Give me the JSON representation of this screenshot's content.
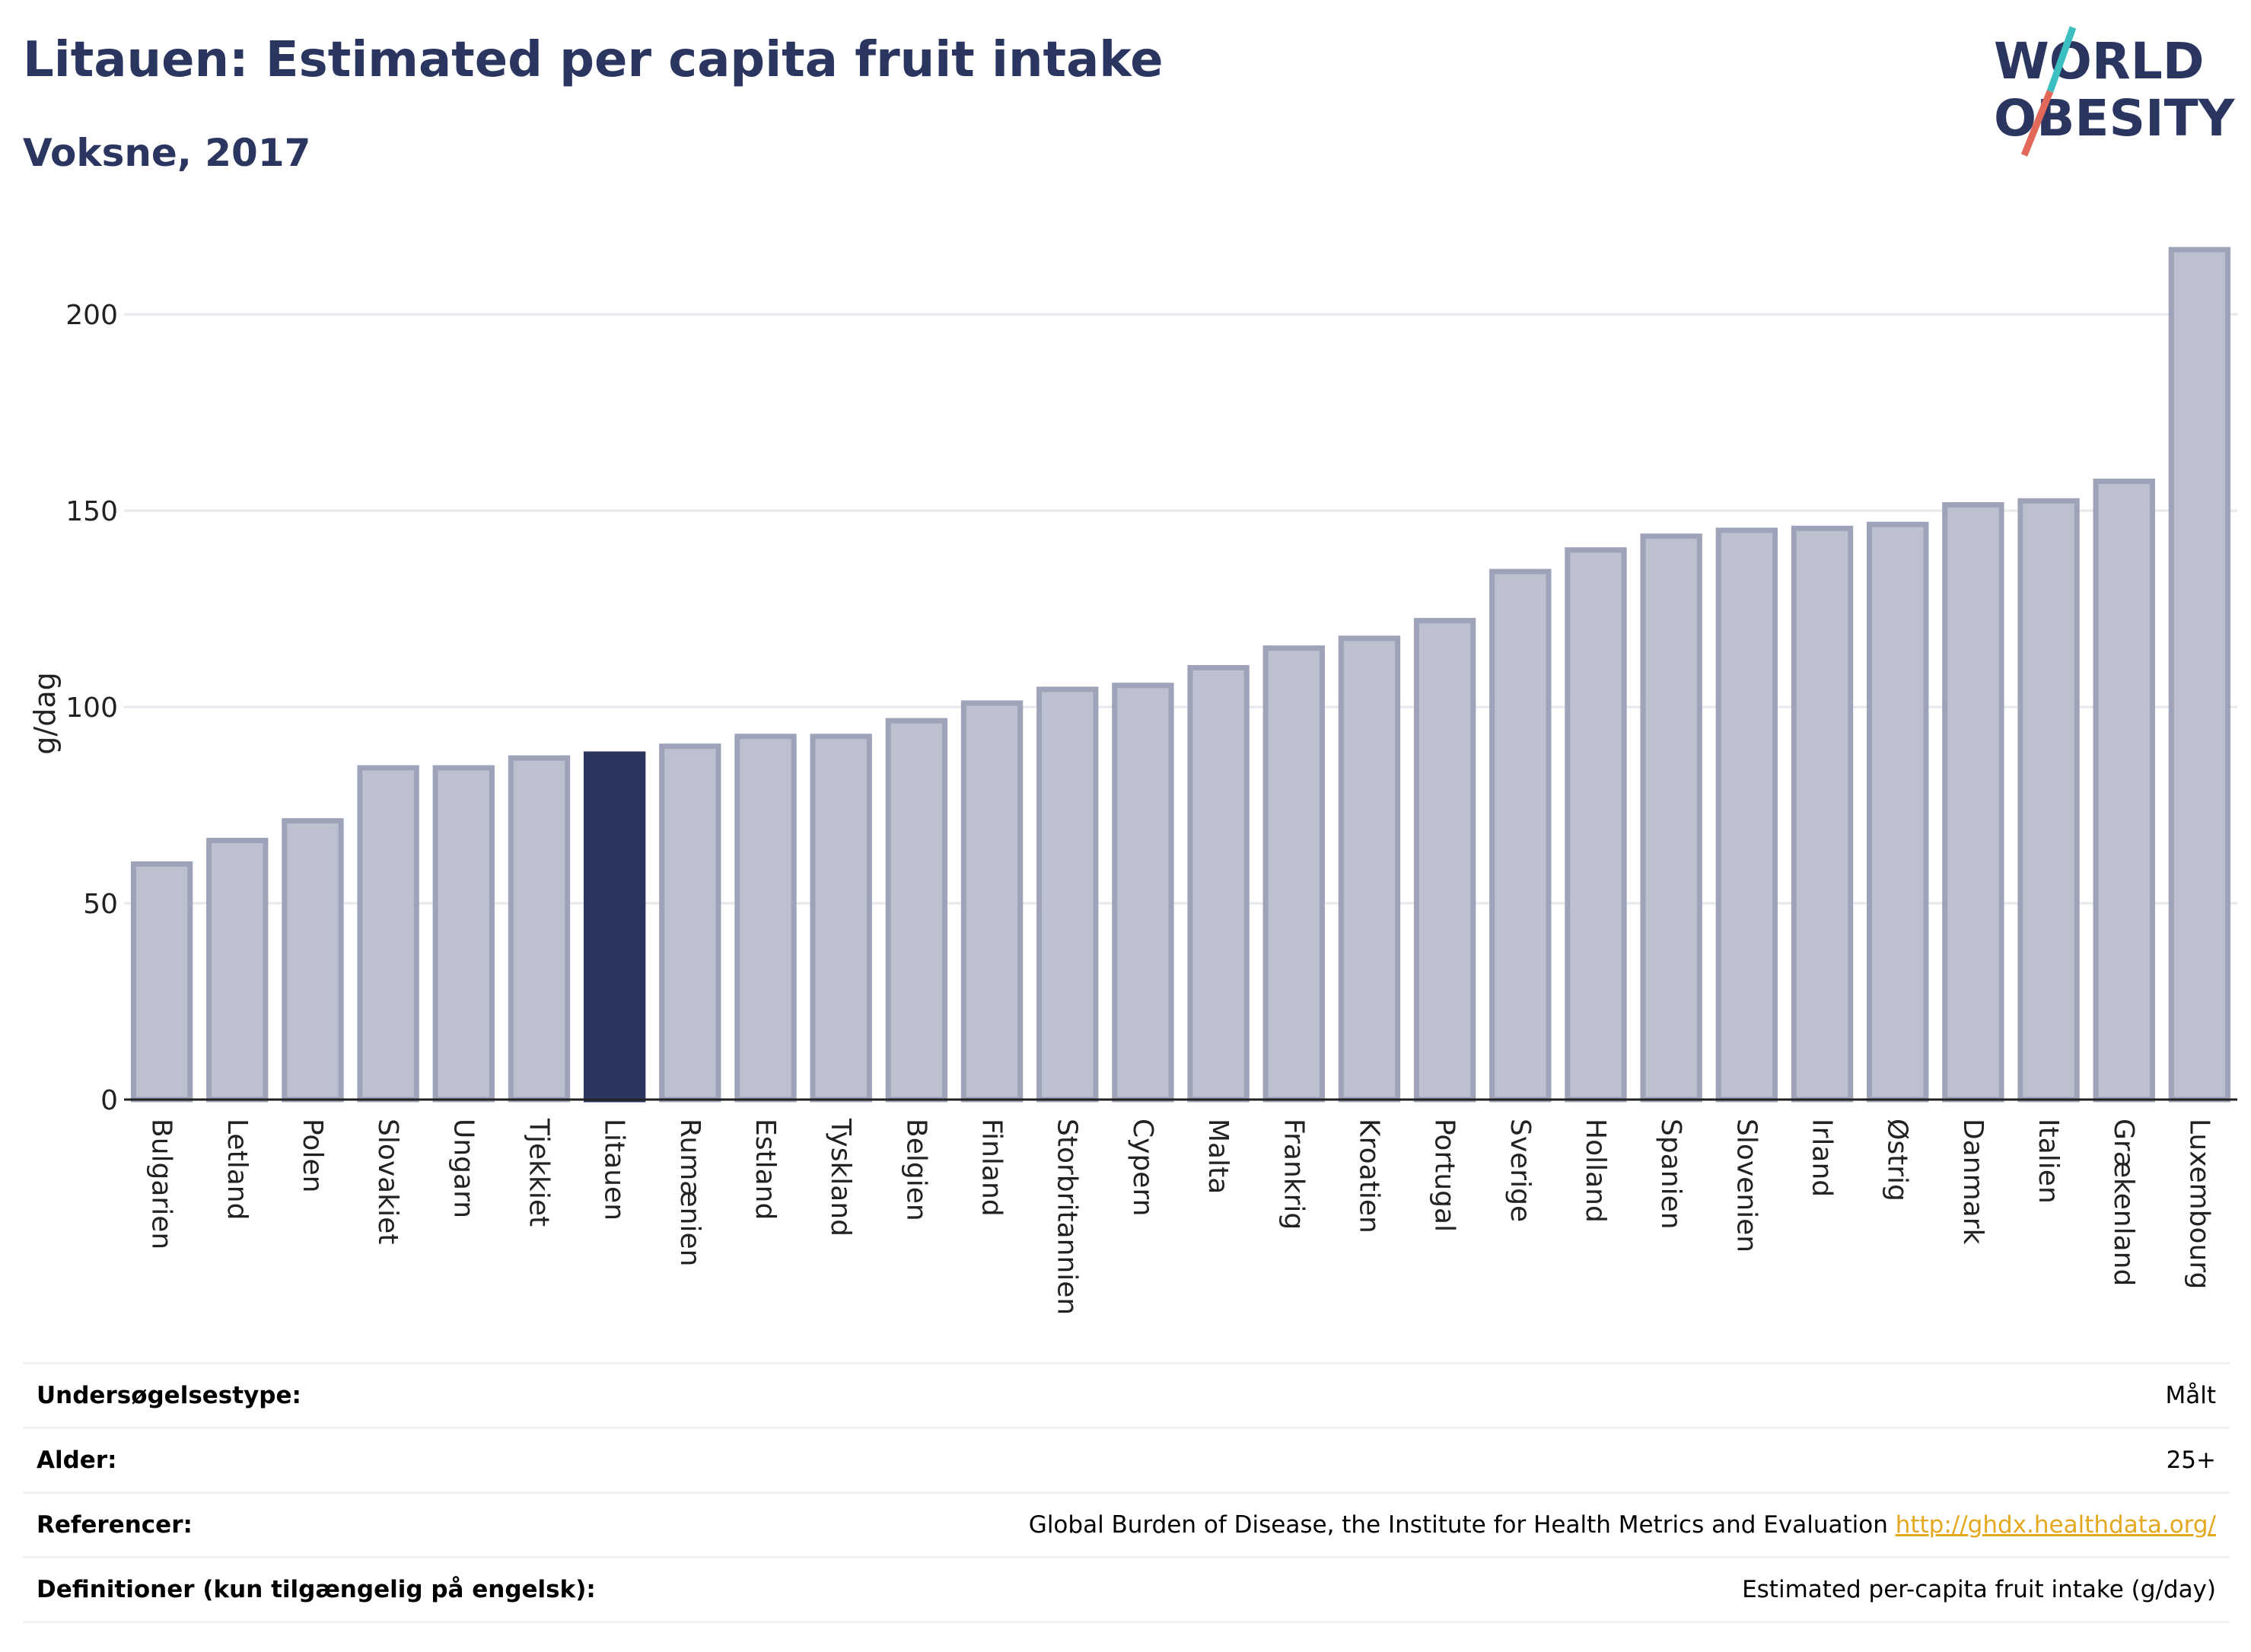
{
  "header": {
    "title": "Litauen: Estimated per capita fruit intake",
    "subtitle": "Voksne, 2017"
  },
  "logo": {
    "line1": "WORLD",
    "line2": "OBESITY",
    "colors": {
      "text": "#2a3560",
      "slash_teal": "#3bbfc1",
      "slash_red": "#e2685a"
    }
  },
  "colors": {
    "bar_fill": "#bcc0cf",
    "bar_stroke": "#9ea3ba",
    "highlight": "#2a3560",
    "grid": "#e6e8ee",
    "axis": "#222222"
  },
  "chart_data": {
    "type": "bar",
    "ylabel": "g/dag",
    "ylim": [
      0,
      220
    ],
    "yticks": [
      0,
      50,
      100,
      150,
      200
    ],
    "grid": true,
    "highlight": "Litauen",
    "categories": [
      "Bulgarien",
      "Letland",
      "Polen",
      "Slovakiet",
      "Ungarn",
      "Tjekkiet",
      "Litauen",
      "Rumænien",
      "Estland",
      "Tyskland",
      "Belgien",
      "Finland",
      "Storbritannien",
      "Cypern",
      "Malta",
      "Frankrig",
      "Kroatien",
      "Portugal",
      "Sverige",
      "Holland",
      "Spanien",
      "Slovenien",
      "Irland",
      "Østrig",
      "Danmark",
      "Italien",
      "Grækenland",
      "Luxembourg"
    ],
    "values": [
      60,
      66,
      71,
      84.5,
      84.5,
      87,
      88,
      90,
      92.5,
      92.5,
      96.5,
      101,
      104.5,
      105.5,
      110,
      115,
      117.5,
      122,
      134.5,
      140,
      143.5,
      145,
      145.5,
      146.5,
      151.5,
      152.5,
      157.5,
      216.5
    ]
  },
  "info": [
    {
      "label": "Undersøgelsestype:",
      "value": "Målt"
    },
    {
      "label": "Alder:",
      "value": "25+"
    },
    {
      "label": "Referencer:",
      "value": "Global Burden of Disease, the Institute for Health Metrics and Evaluation",
      "link": "http://ghdx.healthdata.org/"
    },
    {
      "label": "Definitioner (kun tilgængelig på engelsk):",
      "value": "Estimated per-capita fruit intake (g/day)"
    }
  ]
}
